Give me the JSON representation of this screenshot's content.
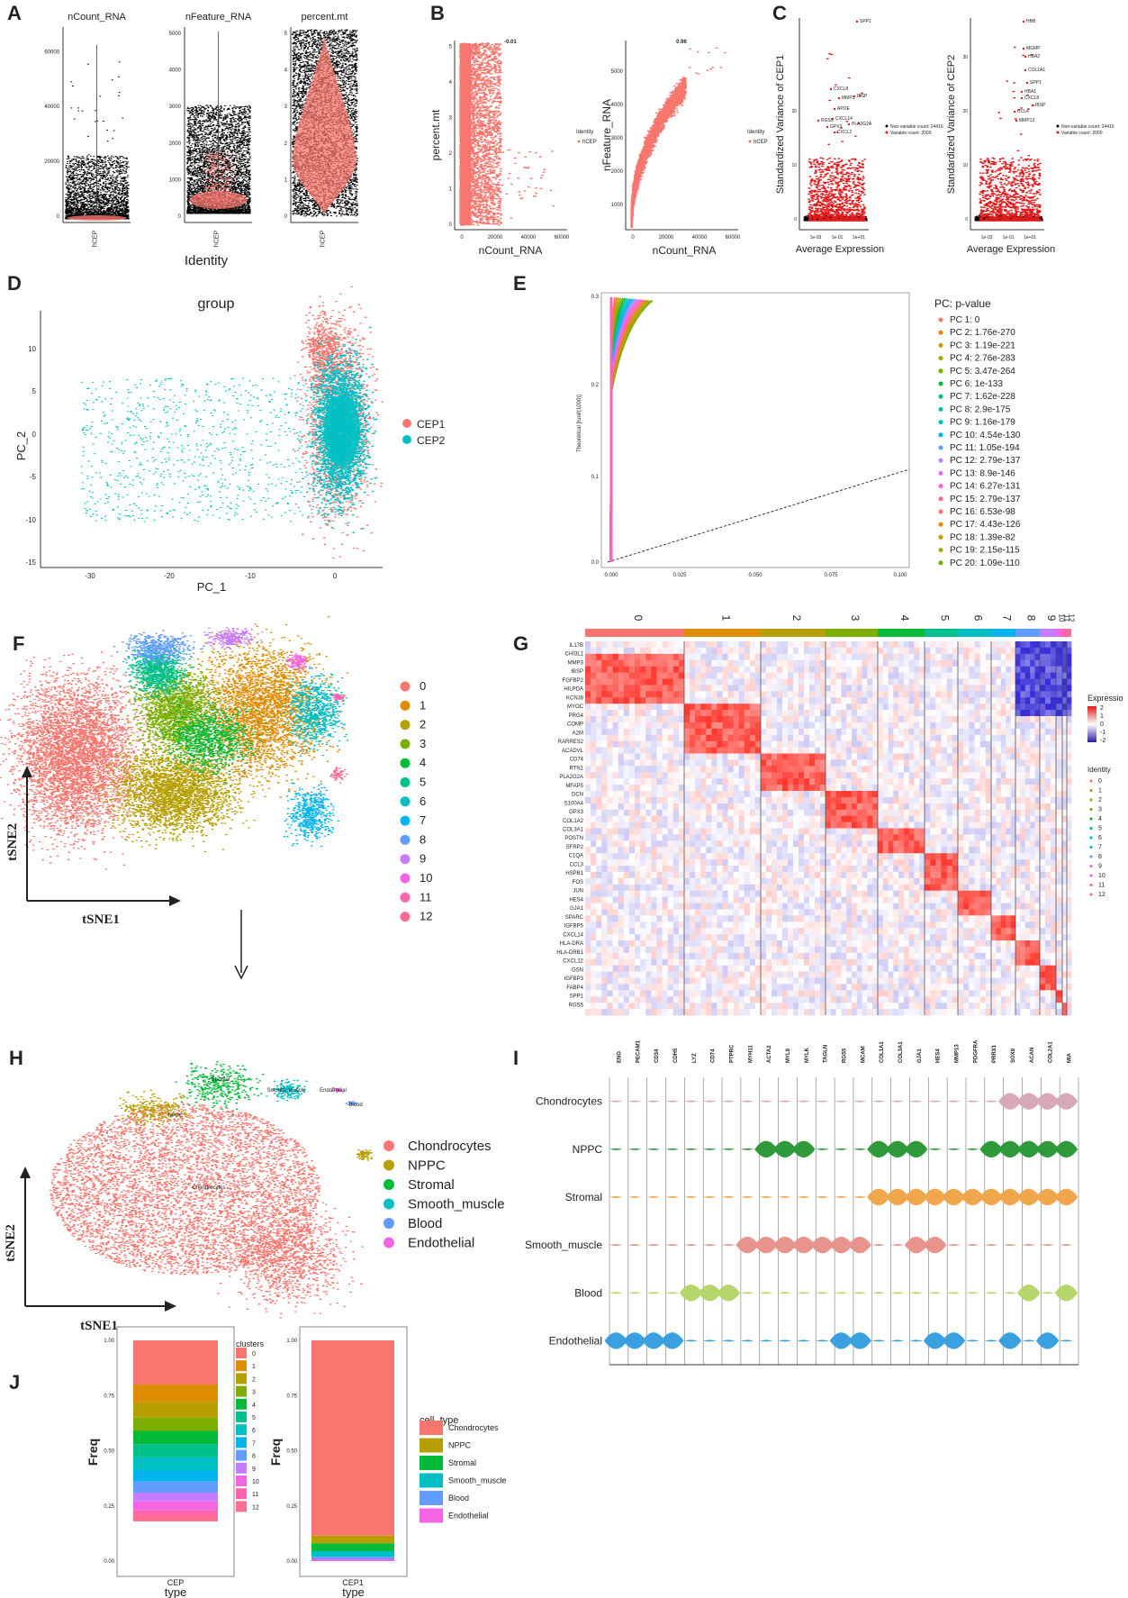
{
  "panel_labels": [
    "A",
    "B",
    "C",
    "D",
    "E",
    "F",
    "G",
    "H",
    "I",
    "J"
  ],
  "colors": {
    "salmon": "#F8766D",
    "teal": "#00BFC4",
    "clusters": [
      "#F8766D",
      "#E58700",
      "#C99800",
      "#A3A500",
      "#6BB100",
      "#00BA38",
      "#00BF7D",
      "#00C0AF",
      "#00BCD8",
      "#00B0F6",
      "#619CFF",
      "#B983FF",
      "#E76BF3",
      "#FD61D1",
      "#FF67A4"
    ],
    "cluster13": [
      "#F8766D",
      "#DE8C00",
      "#B79F00",
      "#7CAE00",
      "#00BA38",
      "#00C08B",
      "#00BFC4",
      "#00B4F0",
      "#619CFF",
      "#C77CFF",
      "#F564E3",
      "#FF64B0",
      "#FF6C91"
    ],
    "celltypes": [
      "#F8766D",
      "#B79F00",
      "#00BA38",
      "#00BFC4",
      "#619CFF",
      "#F564E3"
    ]
  },
  "panelA": {
    "violins": [
      {
        "title": "nCount_RNA",
        "ticks": [
          "0",
          "20000",
          "40000",
          "60000"
        ],
        "group": "hCEP"
      },
      {
        "title": "nFeature_RNA",
        "ticks": [
          "0",
          "1000",
          "2000",
          "3000",
          "4000",
          "5000"
        ],
        "group": "hCEP"
      },
      {
        "title": "percent.mt",
        "ticks": [
          "0",
          "1",
          "2",
          "3",
          "4",
          "5"
        ],
        "group": "hCEP"
      }
    ],
    "xlabel": "Identity"
  },
  "panelB": {
    "scatter1": {
      "corr": "-0.01",
      "ylabel": "percent.mt",
      "xlabel": "nCount_RNA",
      "yticks": [
        "0",
        "1",
        "2",
        "3",
        "4",
        "5"
      ],
      "xticks": [
        "0",
        "20000",
        "40000",
        "60000"
      ],
      "legend_title": "Identity",
      "legend_item": "hCEP"
    },
    "scatter2": {
      "corr": "0.96",
      "ylabel": "nFeature_RNA",
      "xlabel": "nCount_RNA",
      "yticks": [
        "1000",
        "2000",
        "3000",
        "4000",
        "5000"
      ],
      "xticks": [
        "0",
        "20000",
        "40000",
        "60000"
      ],
      "legend_title": "Identity",
      "legend_item": "hCEP"
    }
  },
  "panelC": {
    "plot1": {
      "ylabel": "Standardized Variance of CEP1",
      "xlabel": "Average Expression",
      "xticks": [
        "1e-03",
        "1e-01",
        "1e+01"
      ],
      "yticks": [
        "0",
        "10",
        "20"
      ],
      "genes": [
        "SPP1",
        "CXCL8",
        "MMP3",
        "IBSP",
        "APOE",
        "RGS5",
        "CXCL14",
        "PLA2G2A",
        "GPX3",
        "CXCL2"
      ],
      "legend": [
        "Non-variable count: 24416",
        "Variable count: 2000"
      ]
    },
    "plot2": {
      "ylabel": "Standardized Variance of CEP2",
      "xlabel": "Average Expression",
      "xticks": [
        "1e-03",
        "1e-01",
        "1e+01"
      ],
      "yticks": [
        "0",
        "10",
        "20",
        "30"
      ],
      "genes": [
        "HBB",
        "MGMP",
        "HBA2",
        "COL1A1",
        "SPP1",
        "HBA1",
        "CXCL8",
        "IBSP",
        "CCL4",
        "MMP13"
      ],
      "legend": [
        "Non-variable count: 24416",
        "Variable count: 2000"
      ]
    }
  },
  "panelD": {
    "title": "group",
    "xlabel": "PC_1",
    "ylabel": "PC_2",
    "xticks": [
      "-30",
      "-20",
      "-10",
      "0"
    ],
    "yticks": [
      "10",
      "5",
      "0",
      "-5",
      "-10",
      "-15"
    ],
    "legend": [
      "CEP1",
      "CEP2"
    ]
  },
  "panelE": {
    "ylabel": "Theoretical [runif(1000)]",
    "yticks": [
      "0.0",
      "0.1",
      "0.2",
      "0.3"
    ],
    "xticks": [
      "0.000",
      "0.025",
      "0.050",
      "0.075",
      "0.100"
    ],
    "legend_title": "PC: p-value",
    "legend": [
      "PC 1: 0",
      "PC 2: 1.76e-270",
      "PC 3: 1.19e-221",
      "PC 4: 2.76e-283",
      "PC 5: 3.47e-264",
      "PC 6: 1e-133",
      "PC 7: 1.62e-228",
      "PC 8: 2.9e-175",
      "PC 9: 1.16e-179",
      "PC 10: 4.54e-130",
      "PC 11: 1.05e-194",
      "PC 12: 2.79e-137",
      "PC 13: 8.9e-146",
      "PC 14: 6.27e-131",
      "PC 15: 2.79e-137",
      "PC 16: 6.53e-98",
      "PC 17: 4.43e-126",
      "PC 18: 1.39e-82",
      "PC 19: 2.15e-115",
      "PC 20: 1.09e-110"
    ]
  },
  "panelF": {
    "xlabel": "tSNE1",
    "ylabel": "tSNE2",
    "legend": [
      "0",
      "1",
      "2",
      "3",
      "4",
      "5",
      "6",
      "7",
      "8",
      "9",
      "10",
      "11",
      "12"
    ]
  },
  "panelG": {
    "columns": [
      "0",
      "1",
      "2",
      "3",
      "4",
      "5",
      "6",
      "7",
      "8",
      "9",
      "10",
      "11",
      "12"
    ],
    "genes": [
      "IL17B",
      "CHI3L1",
      "MMP3",
      "IBSP",
      "FGFBP2",
      "HILPDA",
      "KCNJ8",
      "MYOC",
      "PRG4",
      "COMP",
      "A2M",
      "RARRES2",
      "ACADVL",
      "CD74",
      "RTN1",
      "PLA2G2A",
      "MFAP5",
      "DCN",
      "S100A4",
      "GPX3",
      "COL1A2",
      "COL3A1",
      "POSTN",
      "SFRP2",
      "C1QA",
      "CCL3",
      "HSPB1",
      "FOS",
      "JUN",
      "HES4",
      "GJA1",
      "SPARC",
      "IGFBP5",
      "CXCL14",
      "HLA-DRA",
      "HLA-DRB1",
      "CXCL12",
      "GSN",
      "IGFBP3",
      "FABP4",
      "SPP1",
      "RGS5"
    ],
    "expr_title": "Expressio",
    "expr_ticks": [
      "2",
      "1",
      "0",
      "-1",
      "-2"
    ],
    "identity_title": "Identity",
    "identity_items": [
      "0",
      "1",
      "2",
      "3",
      "4",
      "5",
      "6",
      "7",
      "8",
      "9",
      "10",
      "11",
      "12"
    ]
  },
  "panelH": {
    "xlabel": "tSNE1",
    "ylabel": "tSNE2",
    "legend": [
      "Chondrocytes",
      "NPPC",
      "Stromal",
      "Smooth_muscle",
      "Blood",
      "Endothelial"
    ],
    "annotations": [
      "Stromal",
      "Smooth_muscle",
      "NPPC",
      "Endothelial",
      "Blood",
      "Chondrocytes"
    ]
  },
  "panelI": {
    "genes": [
      "ENG",
      "PECAM1",
      "CD34",
      "CDH5",
      "LYZ",
      "CD74",
      "PTPRC",
      "MYH11",
      "ACTA2",
      "MYL9",
      "MYLK",
      "TAGLN",
      "RGS5",
      "MCAM",
      "COL1A1",
      "COL3A1",
      "GJA1",
      "HES4",
      "MMP13",
      "PDGFRA",
      "PRRX1",
      "SOX9",
      "ACAN",
      "COL2A1",
      "MIA"
    ],
    "rows": [
      "Chondrocytes",
      "NPPC",
      "Stromal",
      "Smooth_muscle",
      "Blood",
      "Endothelial"
    ]
  },
  "panelJ": {
    "plot1": {
      "ylabel": "Freq",
      "xlabel": "type",
      "category": "CEP",
      "yticks": [
        "0.00",
        "0.25",
        "0.50",
        "0.75",
        "1.00"
      ],
      "legend_title": "clusters",
      "legend": [
        "0",
        "1",
        "2",
        "3",
        "4",
        "5",
        "6",
        "7",
        "8",
        "9",
        "10",
        "11",
        "12"
      ],
      "values": [
        0.2,
        0.08,
        0.07,
        0.06,
        0.06,
        0.06,
        0.06,
        0.05,
        0.05,
        0.04,
        0.04,
        0.02,
        0.03
      ]
    },
    "plot2": {
      "ylabel": "Freq",
      "xlabel": "type",
      "category": "CEP1",
      "yticks": [
        "0.00",
        "0.25",
        "0.50",
        "0.75",
        "1.00"
      ],
      "legend_title": "cell_type",
      "legend": [
        "Chondrocytes",
        "NPPC",
        "Stromal",
        "Smooth_muscle",
        "Blood",
        "Endothelial"
      ],
      "values": [
        0.885,
        0.035,
        0.035,
        0.025,
        0.012,
        0.008
      ]
    }
  }
}
